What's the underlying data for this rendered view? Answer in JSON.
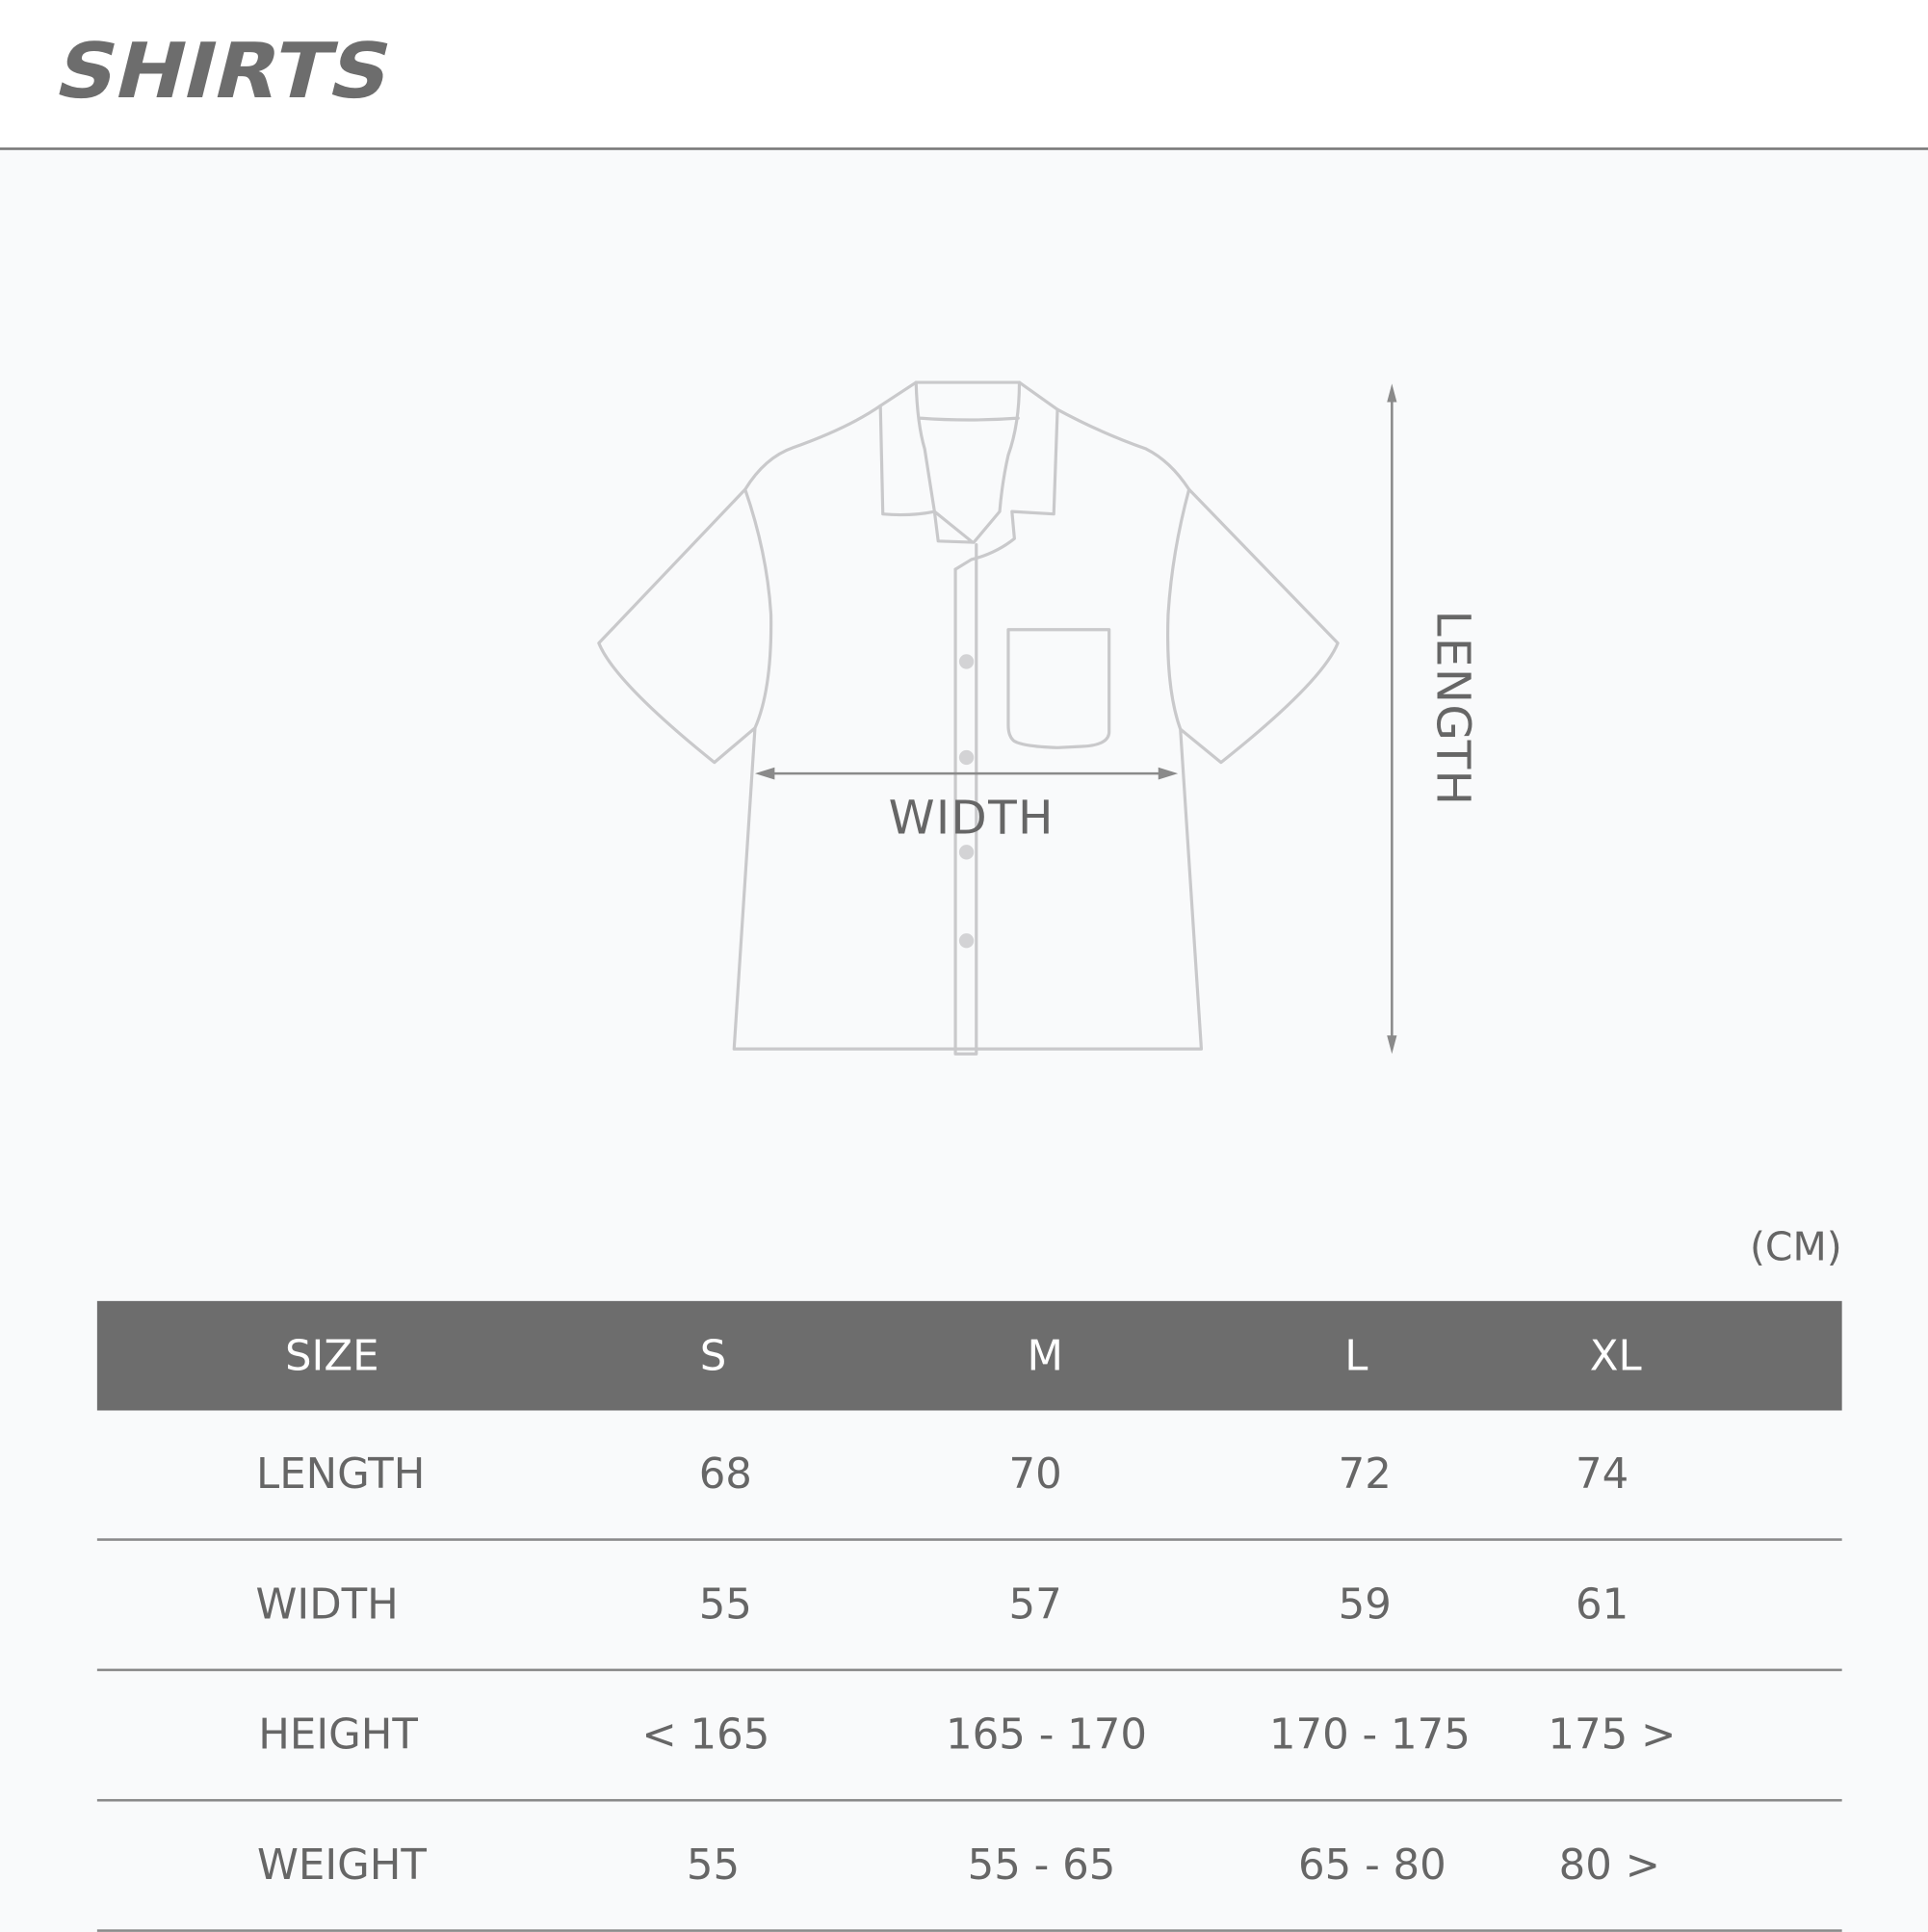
{
  "brand": {
    "logo_text": "SHIRTS"
  },
  "diagram": {
    "length_label": "LENGTH",
    "width_label": "WIDTH",
    "line_color": "#c9c9cb",
    "arrow_color": "#8a8a8a"
  },
  "unit_label": "(CM)",
  "table": {
    "header": [
      "SIZE",
      "S",
      "M",
      "L",
      "XL"
    ],
    "header_bg": "#6d6d6d",
    "rows": [
      {
        "label": "LENGTH",
        "values": [
          "68",
          "70",
          "72",
          "74"
        ]
      },
      {
        "label": "WIDTH",
        "values": [
          "55",
          "57",
          "59",
          "61"
        ]
      },
      {
        "label": "HEIGHT",
        "values": [
          "< 165",
          "165 - 170",
          "170 - 175",
          "175 >"
        ]
      },
      {
        "label": "WEIGHT",
        "values": [
          "55",
          "55 - 65",
          "65 - 80",
          "80 >"
        ]
      }
    ]
  }
}
